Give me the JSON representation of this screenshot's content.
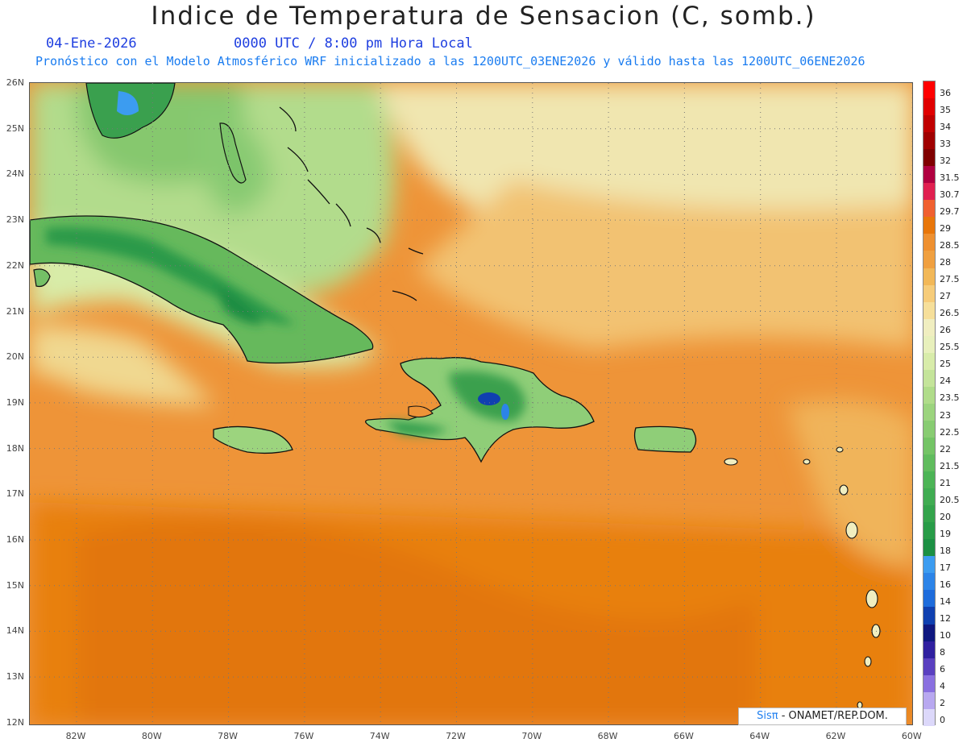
{
  "header": {
    "title": "Indice de Temperatura de Sensacion (C, somb.)",
    "date": "04-Ene-2026",
    "time": "0000 UTC / 8:00 pm Hora Local",
    "forecast": "Pronóstico con el Modelo Atmosférico WRF inicializado a las 1200UTC_03ENE2026 y válido hasta las  1200UTC_06ENE2026"
  },
  "axes": {
    "lat_labels": [
      "26N",
      "25N",
      "24N",
      "23N",
      "22N",
      "21N",
      "20N",
      "19N",
      "18N",
      "17N",
      "16N",
      "15N",
      "14N",
      "13N",
      "12N"
    ],
    "lon_labels": [
      "82W",
      "80W",
      "78W",
      "76W",
      "74W",
      "72W",
      "70W",
      "68W",
      "66W",
      "64W",
      "62W",
      "60W"
    ]
  },
  "colorbar": {
    "labels": [
      "36",
      "35",
      "34",
      "33",
      "32",
      "31.5",
      "30.7",
      "29.7",
      "29",
      "28.5",
      "28",
      "27.5",
      "27",
      "26.5",
      "26",
      "25.5",
      "25",
      "24",
      "23.5",
      "23",
      "22.5",
      "22",
      "21.5",
      "21",
      "20.5",
      "20",
      "19",
      "18",
      "17",
      "16",
      "14",
      "12",
      "10",
      "8",
      "6",
      "4",
      "2",
      "0"
    ],
    "colors": [
      "#ff0000",
      "#e00000",
      "#c00000",
      "#a00000",
      "#800000",
      "#b00040",
      "#e02050",
      "#f06030",
      "#e8760a",
      "#ee9030",
      "#f0a040",
      "#f2b858",
      "#f6cc7a",
      "#f6df9a",
      "#f0eec0",
      "#e8f0bc",
      "#d8ecaa",
      "#c4e49a",
      "#b0dc8a",
      "#9cd47e",
      "#88cc72",
      "#74c466",
      "#60bc5e",
      "#4cb456",
      "#40ac52",
      "#34a44c",
      "#289c48",
      "#1c9044",
      "#3c9cf0",
      "#2c84e8",
      "#1e6cdc",
      "#1040b0",
      "#101880",
      "#3020a0",
      "#5a40c0",
      "#8a70e0",
      "#b8a8f0",
      "#dcd8fa"
    ]
  },
  "credit": {
    "brand": "Sisπ",
    "org": " - ONAMET/REP.DOM."
  }
}
